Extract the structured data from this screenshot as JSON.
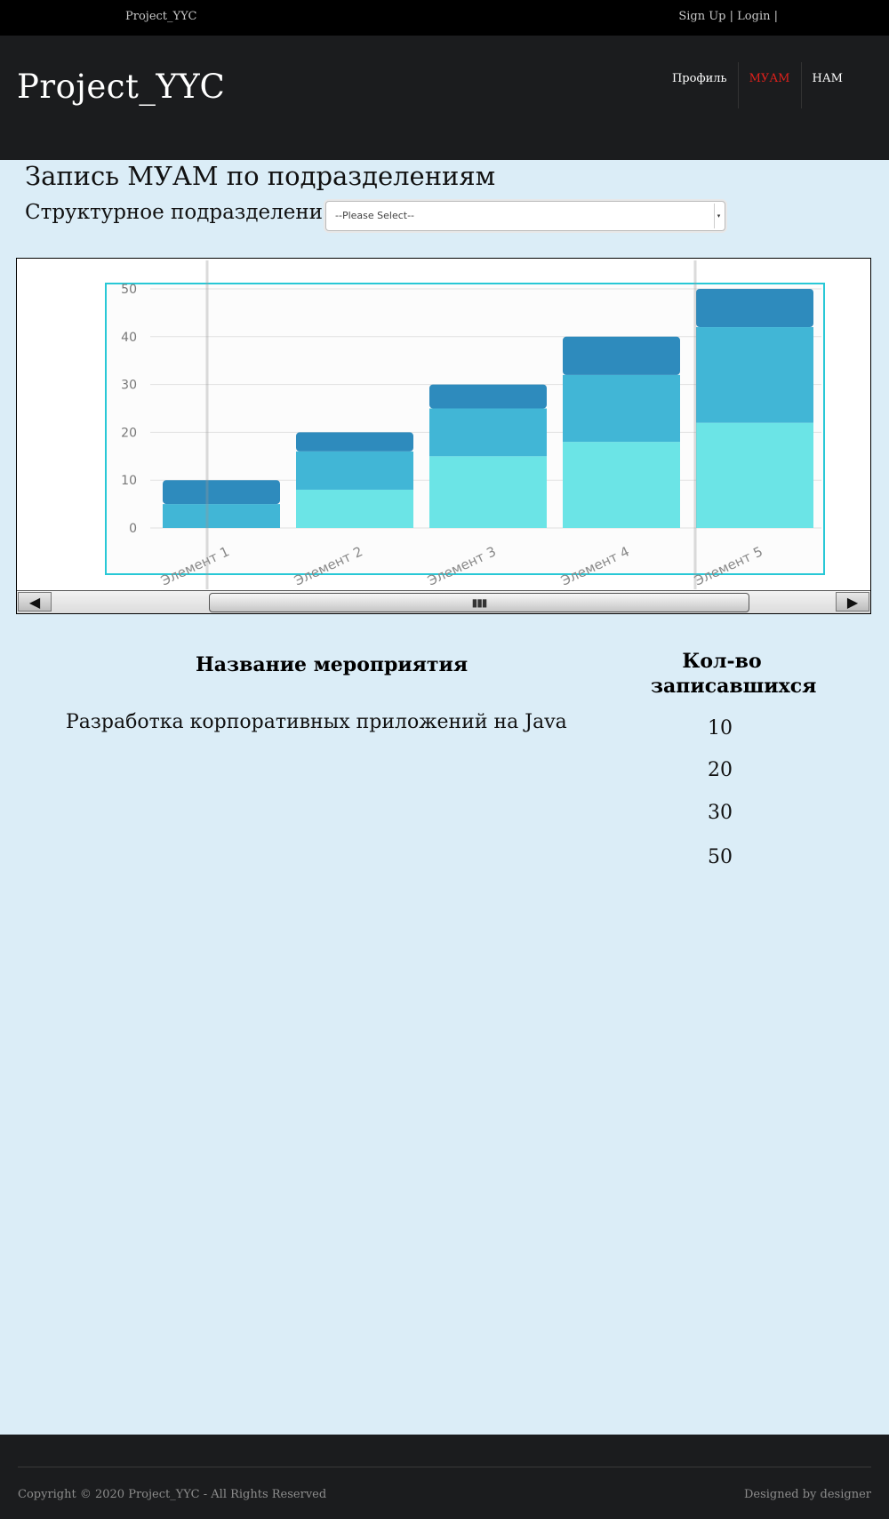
{
  "topbar": {
    "brand": "Project_YYC",
    "signup": "Sign Up",
    "login": "Login",
    "separator": "|"
  },
  "header": {
    "logo": "Project_YYC",
    "nav": [
      {
        "label": "Профиль",
        "active": false
      },
      {
        "label": "МУАМ",
        "active": true
      },
      {
        "label": "НАМ",
        "active": false
      }
    ]
  },
  "main": {
    "title": "Запись МУАМ по подразделениям",
    "filter_label": "Структурное подразделение:",
    "select_value": "--Please Select--"
  },
  "chart_data": {
    "type": "bar",
    "stacked": true,
    "categories": [
      "Элемент 1",
      "Элемент 2",
      "Элемент 3",
      "Элемент 4",
      "Элемент 5"
    ],
    "series": [
      {
        "values": [
          0,
          8,
          15,
          18,
          22
        ],
        "color": "#6be4e6"
      },
      {
        "values": [
          5,
          8,
          10,
          14,
          20
        ],
        "color": "#41b6d6"
      },
      {
        "values": [
          5,
          4,
          5,
          8,
          8
        ],
        "color": "#2e8bbd"
      }
    ],
    "yticks": [
      0,
      10,
      20,
      30,
      40,
      50
    ],
    "ylim": [
      0,
      50
    ],
    "grid": true
  },
  "table": {
    "header_name": "Название мероприятия",
    "header_count_line1": "Кол-во",
    "header_count_line2": "записавшихся",
    "event_name": "Разработка корпоративных приложений на Java",
    "counts": [
      "10",
      "20",
      "30",
      "50"
    ]
  },
  "footer": {
    "copyright": "Copyright © 2020 Project_YYC - All Rights Reserved",
    "designed": "Designed by designer"
  },
  "colors": {
    "active_nav": "#e0201b",
    "chart_border": "#28c8d6"
  }
}
